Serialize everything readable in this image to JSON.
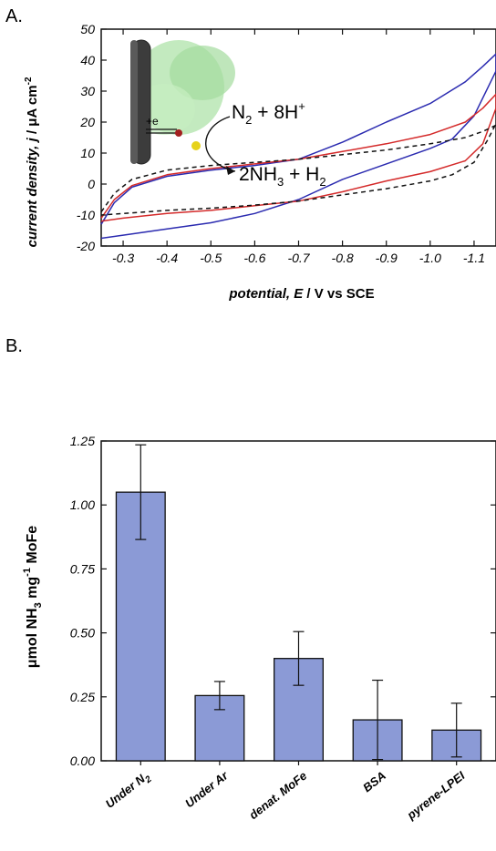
{
  "panels": {
    "a_label": "A.",
    "b_label": "B."
  },
  "chart_data": [
    {
      "type": "line",
      "panel": "A.",
      "xlabel_parts": {
        "var": "potential, E",
        "rest": " / V vs SCE"
      },
      "ylabel_parts": {
        "var": "current density, j",
        "rest": " / μA cm",
        "sup": "-2"
      },
      "xlim": [
        -0.25,
        -1.15
      ],
      "ylim": [
        -20,
        50
      ],
      "x_ticks": [
        -0.3,
        -0.4,
        -0.5,
        -0.6,
        -0.7,
        -0.8,
        -0.9,
        -1.0,
        -1.1
      ],
      "x_tick_labels": [
        "-0.3",
        "-0.4",
        "-0.5",
        "-0.6",
        "-0.7",
        "-0.8",
        "-0.9",
        "-1.0",
        "-1.1"
      ],
      "y_ticks": [
        -20,
        -10,
        0,
        10,
        20,
        30,
        40,
        50
      ],
      "y_tick_labels": [
        "-20",
        "-10",
        "0",
        "10",
        "20",
        "30",
        "40",
        "50"
      ],
      "grid": false,
      "annotations": {
        "reactant": {
          "main": "N",
          "sub1": "2",
          "mid": " + 8H",
          "sup": "+"
        },
        "product": {
          "main": "2NH",
          "sub1": "3",
          "mid": " + H",
          "sub2": "2"
        },
        "electron": "+e"
      },
      "series": [
        {
          "color": "#2b2bb0",
          "dash": false,
          "values": [
            [
              -0.25,
              -13
            ],
            [
              -0.28,
              -6
            ],
            [
              -0.32,
              -1
            ],
            [
              -0.4,
              2.5
            ],
            [
              -0.5,
              4.5
            ],
            [
              -0.6,
              6
            ],
            [
              -0.7,
              8
            ],
            [
              -0.8,
              13.5
            ],
            [
              -0.9,
              20
            ],
            [
              -1.0,
              26
            ],
            [
              -1.08,
              33
            ],
            [
              -1.12,
              38
            ],
            [
              -1.15,
              42
            ],
            [
              -1.15,
              36.5
            ],
            [
              -1.1,
              22
            ],
            [
              -1.05,
              14.5
            ],
            [
              -1.0,
              11.5
            ],
            [
              -0.9,
              6.5
            ],
            [
              -0.8,
              1.5
            ],
            [
              -0.7,
              -5
            ],
            [
              -0.6,
              -9.5
            ],
            [
              -0.5,
              -12.5
            ],
            [
              -0.4,
              -14.5
            ],
            [
              -0.3,
              -16.5
            ],
            [
              -0.25,
              -17.5
            ]
          ]
        },
        {
          "color": "#d42a2a",
          "dash": false,
          "values": [
            [
              -0.25,
              -11
            ],
            [
              -0.28,
              -5
            ],
            [
              -0.32,
              -0.5
            ],
            [
              -0.4,
              3
            ],
            [
              -0.5,
              5
            ],
            [
              -0.6,
              6.5
            ],
            [
              -0.7,
              8
            ],
            [
              -0.8,
              10.5
            ],
            [
              -0.9,
              13
            ],
            [
              -1.0,
              16
            ],
            [
              -1.08,
              20
            ],
            [
              -1.12,
              24.5
            ],
            [
              -1.15,
              29
            ],
            [
              -1.15,
              24.5
            ],
            [
              -1.12,
              13
            ],
            [
              -1.08,
              7.5
            ],
            [
              -1.0,
              4
            ],
            [
              -0.9,
              1
            ],
            [
              -0.8,
              -2.5
            ],
            [
              -0.7,
              -5.5
            ],
            [
              -0.6,
              -7
            ],
            [
              -0.5,
              -8.5
            ],
            [
              -0.4,
              -9.5
            ],
            [
              -0.3,
              -11
            ],
            [
              -0.25,
              -12
            ]
          ]
        },
        {
          "color": "#111111",
          "dash": true,
          "values": [
            [
              -0.25,
              -9
            ],
            [
              -0.28,
              -3
            ],
            [
              -0.32,
              1.5
            ],
            [
              -0.4,
              4.5
            ],
            [
              -0.5,
              6
            ],
            [
              -0.6,
              7
            ],
            [
              -0.7,
              8
            ],
            [
              -0.8,
              9.5
            ],
            [
              -0.9,
              11
            ],
            [
              -1.0,
              13
            ],
            [
              -1.08,
              15
            ],
            [
              -1.12,
              17
            ],
            [
              -1.15,
              19
            ],
            [
              -1.15,
              19.5
            ],
            [
              -1.13,
              14
            ],
            [
              -1.1,
              7
            ],
            [
              -1.05,
              3
            ],
            [
              -1.0,
              1
            ],
            [
              -0.9,
              -1.5
            ],
            [
              -0.8,
              -3.5
            ],
            [
              -0.7,
              -5.5
            ],
            [
              -0.6,
              -6.8
            ],
            [
              -0.5,
              -7.8
            ],
            [
              -0.4,
              -8.5
            ],
            [
              -0.3,
              -9.5
            ],
            [
              -0.25,
              -10
            ]
          ]
        }
      ]
    },
    {
      "type": "bar",
      "panel": "B.",
      "ylabel_parts": {
        "pre": "μmol NH",
        "sub": "3",
        "mid": " mg",
        "sup": "-1",
        "post": " MoFe"
      },
      "ylim": [
        0,
        1.25
      ],
      "y_ticks": [
        0,
        0.25,
        0.5,
        0.75,
        1.0,
        1.25
      ],
      "y_tick_labels": [
        "0.00",
        "0.25",
        "0.50",
        "0.75",
        "1.00",
        "1.25"
      ],
      "categories": [
        {
          "text": "Under N",
          "sub": "2"
        },
        {
          "text": "Under Ar",
          "sub": ""
        },
        {
          "text": "denat. MoFe",
          "sub": ""
        },
        {
          "text": "BSA",
          "sub": ""
        },
        {
          "text": "pyrene-LPEI",
          "sub": ""
        }
      ],
      "values": [
        1.05,
        0.255,
        0.4,
        0.16,
        0.12
      ],
      "errors": [
        0.185,
        0.055,
        0.105,
        0.155,
        0.105
      ],
      "bar_color": "#8b9ad6",
      "grid": false
    }
  ]
}
